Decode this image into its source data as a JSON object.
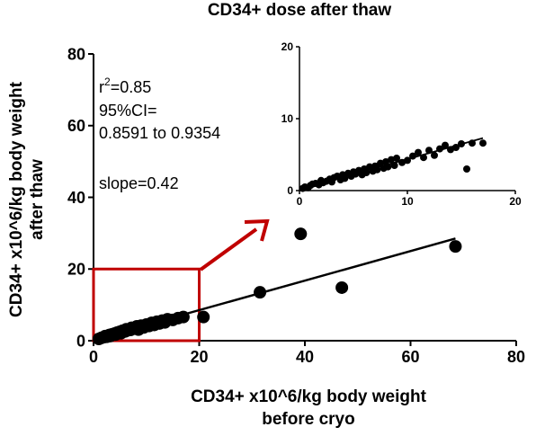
{
  "chart_data": [
    {
      "type": "scatter",
      "title": "CD34+ dose after thaw",
      "xlabel_lines": [
        "CD34+ x10^6/kg body weight",
        "before cryo"
      ],
      "ylabel_lines": [
        "CD34+ x10^6/kg body weight",
        "after thaw"
      ],
      "xlim": [
        0,
        80
      ],
      "ylim": [
        0,
        80
      ],
      "xticks": [
        "0",
        "20",
        "40",
        "60",
        "80"
      ],
      "yticks": [
        "0",
        "20",
        "40",
        "60",
        "80"
      ],
      "annotation": {
        "r2_base": "r",
        "r2_exp": "2",
        "r2_value": "=0.85",
        "ci_label": "95%CI=",
        "ci_range": "0.8591 to 0.9354",
        "slope": "slope=0.42"
      },
      "fit_line": {
        "x": [
          0,
          68.5
        ],
        "y": [
          0.3,
          28.5
        ]
      },
      "points": {
        "x": [
          1,
          1.5,
          2,
          2.2,
          2.5,
          3,
          3.2,
          3.5,
          4,
          4.2,
          4.5,
          5,
          5.2,
          5.5,
          6,
          6.2,
          6.5,
          7,
          7.2,
          7.5,
          8,
          8.2,
          8.5,
          9,
          9.5,
          10,
          10.5,
          11,
          11.5,
          12,
          12.5,
          13,
          13.5,
          14,
          15,
          16,
          17,
          20.8,
          31.5,
          39.2,
          47,
          68.5
        ],
        "y": [
          0.5,
          0.8,
          1.0,
          1.3,
          1.1,
          1.6,
          1.3,
          1.8,
          2.0,
          1.7,
          2.3,
          2.5,
          2.1,
          2.8,
          2.6,
          3.2,
          2.9,
          3.0,
          3.6,
          3.3,
          3.5,
          4.0,
          3.1,
          4.2,
          3.7,
          4.5,
          4.1,
          5.0,
          4.4,
          5.3,
          4.8,
          5.6,
          5.1,
          6.0,
          5.8,
          6.3,
          6.6,
          6.6,
          13.5,
          29.8,
          14.8,
          26.3
        ]
      },
      "highlight_box": {
        "x": [
          0,
          20
        ],
        "y": [
          0,
          20
        ]
      },
      "colors": {
        "points": "#000000",
        "line": "#000000",
        "highlight": "#c00000"
      }
    },
    {
      "type": "scatter",
      "role": "inset",
      "xlim": [
        0,
        20
      ],
      "ylim": [
        0,
        20
      ],
      "xticks": [
        "0",
        "10",
        "20"
      ],
      "yticks": [
        "0",
        "10",
        "20"
      ],
      "fit_line": {
        "x": [
          0,
          17
        ],
        "y": [
          0.2,
          7.3
        ]
      },
      "points": {
        "x": [
          0.3,
          0.5,
          0.8,
          1,
          1.2,
          1.5,
          1.8,
          2,
          2.2,
          2.5,
          2.8,
          3,
          3.2,
          3.5,
          3.8,
          4,
          4.2,
          4.5,
          4.8,
          5,
          5.2,
          5.5,
          5.8,
          6,
          6.2,
          6.5,
          6.8,
          7,
          7.2,
          7.5,
          7.8,
          8,
          8.2,
          8.5,
          8.8,
          9,
          9.5,
          10,
          10.5,
          11,
          11.5,
          12,
          12.5,
          13,
          13.5,
          14,
          14.5,
          15,
          15.5,
          16,
          17
        ],
        "y": [
          0.3,
          0.5,
          0.4,
          0.7,
          0.9,
          1.0,
          0.8,
          1.4,
          1.1,
          1.3,
          1.6,
          1.2,
          1.8,
          2.0,
          1.5,
          2.2,
          1.7,
          2.4,
          2.0,
          2.6,
          2.3,
          2.8,
          2.2,
          3.0,
          2.5,
          3.3,
          2.7,
          3.4,
          2.9,
          3.8,
          3.1,
          4.0,
          3.3,
          4.3,
          3.5,
          4.5,
          3.9,
          4.2,
          4.8,
          5.3,
          4.6,
          5.6,
          4.9,
          5.8,
          6.3,
          5.7,
          6.0,
          6.5,
          3.0,
          6.6,
          6.6
        ]
      }
    }
  ]
}
